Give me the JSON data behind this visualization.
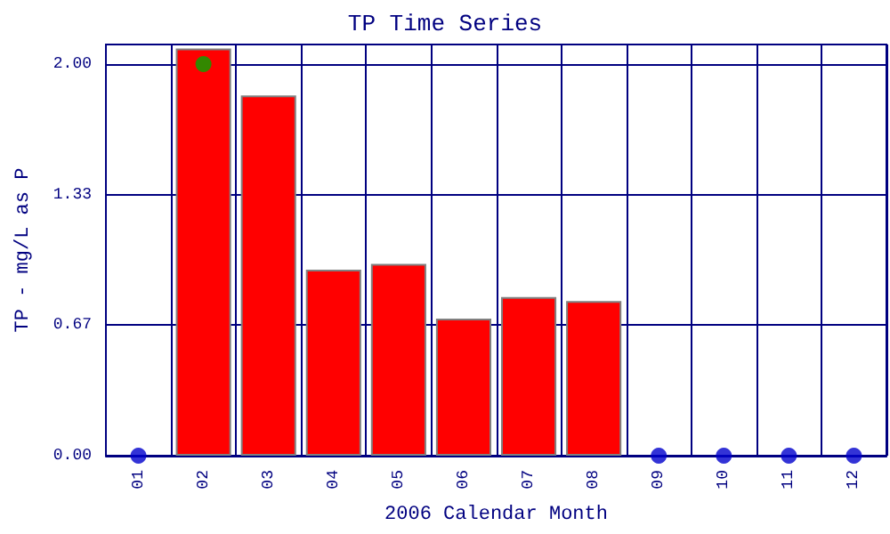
{
  "chart_data": {
    "type": "bar",
    "title": "TP Time Series",
    "xlabel": "2006 Calendar Month",
    "ylabel": "TP - mg/L as P",
    "categories": [
      "01",
      "02",
      "03",
      "04",
      "05",
      "06",
      "07",
      "08",
      "09",
      "10",
      "11",
      "12"
    ],
    "series": [
      {
        "color": "#ff0000",
        "values": [
          null,
          2.08,
          1.84,
          0.95,
          0.98,
          0.7,
          0.81,
          0.79,
          null,
          null,
          null,
          null
        ]
      },
      {
        "type": "scatter",
        "color": "#0000cc",
        "marker": "circle",
        "values": [
          0,
          null,
          null,
          null,
          null,
          null,
          null,
          null,
          0,
          0,
          0,
          0
        ]
      },
      {
        "type": "scatter",
        "color": "#00aa00",
        "marker": "circle",
        "values": [
          null,
          2.0,
          null,
          null,
          null,
          null,
          null,
          null,
          null,
          null,
          null,
          null
        ]
      }
    ],
    "ylim": [
      0,
      2.1
    ],
    "yticks": [
      {
        "value": 0,
        "label": "0.00"
      },
      {
        "value": 0.667,
        "label": "0.67"
      },
      {
        "value": 1.333,
        "label": "1.33"
      },
      {
        "value": 2,
        "label": "2.00"
      }
    ],
    "grid": true
  }
}
